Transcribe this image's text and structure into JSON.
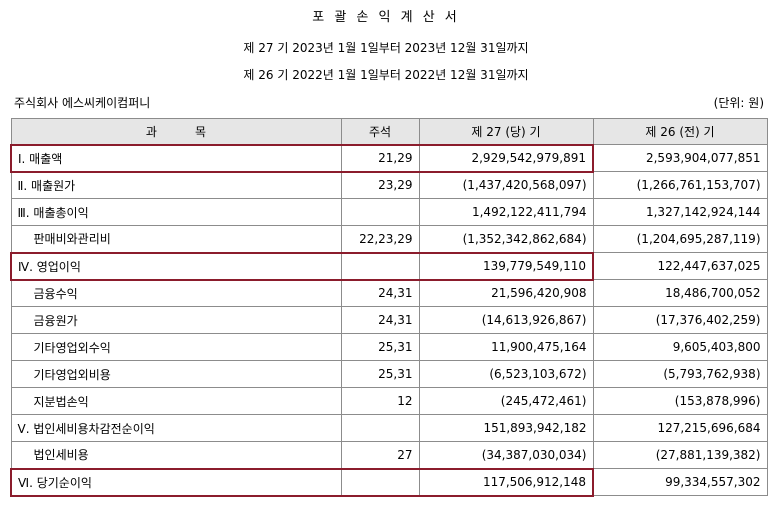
{
  "title": "포 괄 손 익 계 산 서",
  "periods": [
    "제 27 기  2023년 1월 1일부터 2023년 12월 31일까지",
    "제 26 기  2022년 1월 1일부터 2022년 12월 31일까지"
  ],
  "company": "주식회사 에스씨케이컴퍼니",
  "unit": "(단위: 원)",
  "columns": {
    "item": "과          목",
    "note": "주석",
    "current": "제 27 (당) 기",
    "prior": "제 26 (전) 기"
  },
  "rows": [
    {
      "item": "Ⅰ. 매출액",
      "note": "21,29",
      "current": "2,929,542,979,891",
      "prior": "2,593,904,077,851"
    },
    {
      "item": "Ⅱ. 매출원가",
      "note": "23,29",
      "current": "(1,437,420,568,097)",
      "prior": "(1,266,761,153,707)"
    },
    {
      "item": "Ⅲ. 매출총이익",
      "note": "",
      "current": "1,492,122,411,794",
      "prior": "1,327,142,924,144"
    },
    {
      "item": "판매비와관리비",
      "note": "22,23,29",
      "current": "(1,352,342,862,684)",
      "prior": "(1,204,695,287,119)"
    },
    {
      "item": "Ⅳ. 영업이익",
      "note": "",
      "current": "139,779,549,110",
      "prior": "122,447,637,025"
    },
    {
      "item": "금융수익",
      "note": "24,31",
      "current": "21,596,420,908",
      "prior": "18,486,700,052"
    },
    {
      "item": "금융원가",
      "note": "24,31",
      "current": "(14,613,926,867)",
      "prior": "(17,376,402,259)"
    },
    {
      "item": "기타영업외수익",
      "note": "25,31",
      "current": "11,900,475,164",
      "prior": "9,605,403,800"
    },
    {
      "item": "기타영업외비용",
      "note": "25,31",
      "current": "(6,523,103,672)",
      "prior": "(5,793,762,938)"
    },
    {
      "item": "지분법손익",
      "note": "12",
      "current": "(245,472,461)",
      "prior": "(153,878,996)"
    },
    {
      "item": "Ⅴ. 법인세비용차감전순이익",
      "note": "",
      "current": "151,893,942,182",
      "prior": "127,215,696,684"
    },
    {
      "item": "법인세비용",
      "note": "27",
      "current": "(34,387,030,034)",
      "prior": "(27,881,139,382)"
    },
    {
      "item": "Ⅵ. 당기순이익",
      "note": "",
      "current": "117,506,912,148",
      "prior": "99,334,557,302"
    }
  ],
  "highlight_color": "#8b1c2c"
}
